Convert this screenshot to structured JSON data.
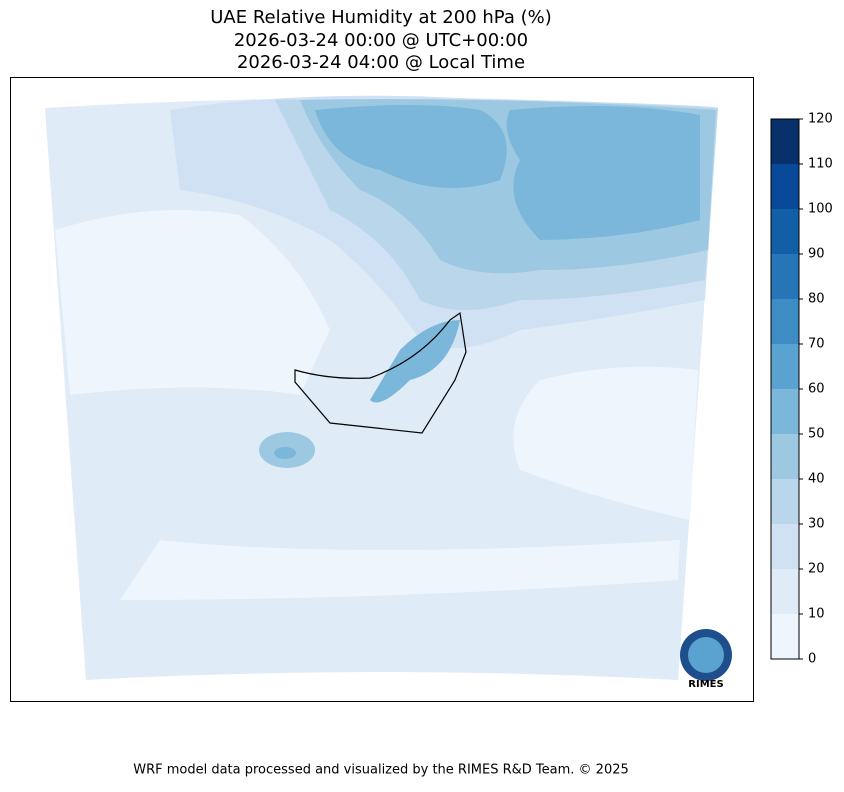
{
  "header": {
    "title_lines": [
      "UAE Relative Humidity at 200 hPa (%)",
      "2026-03-24 00:00 @ UTC+00:00",
      "2026-03-24 04:00 @ Local Time"
    ]
  },
  "colorbar": {
    "lim": [
      0,
      120
    ],
    "ticks": [
      0,
      10,
      20,
      30,
      40,
      50,
      60,
      70,
      80,
      90,
      100,
      110,
      120
    ],
    "colors": [
      "#eef5fc",
      "#dfebf7",
      "#cfe1f2",
      "#bad6eb",
      "#9cc9e1",
      "#7bb7da",
      "#5aa2cf",
      "#3d8dc4",
      "#2575b7",
      "#135fa7",
      "#08499a",
      "#08306b"
    ]
  },
  "logo": {
    "text": "RIMES"
  },
  "footer": {
    "text": "WRF model data processed and visualized by the RIMES R&D Team. © 2025"
  }
}
